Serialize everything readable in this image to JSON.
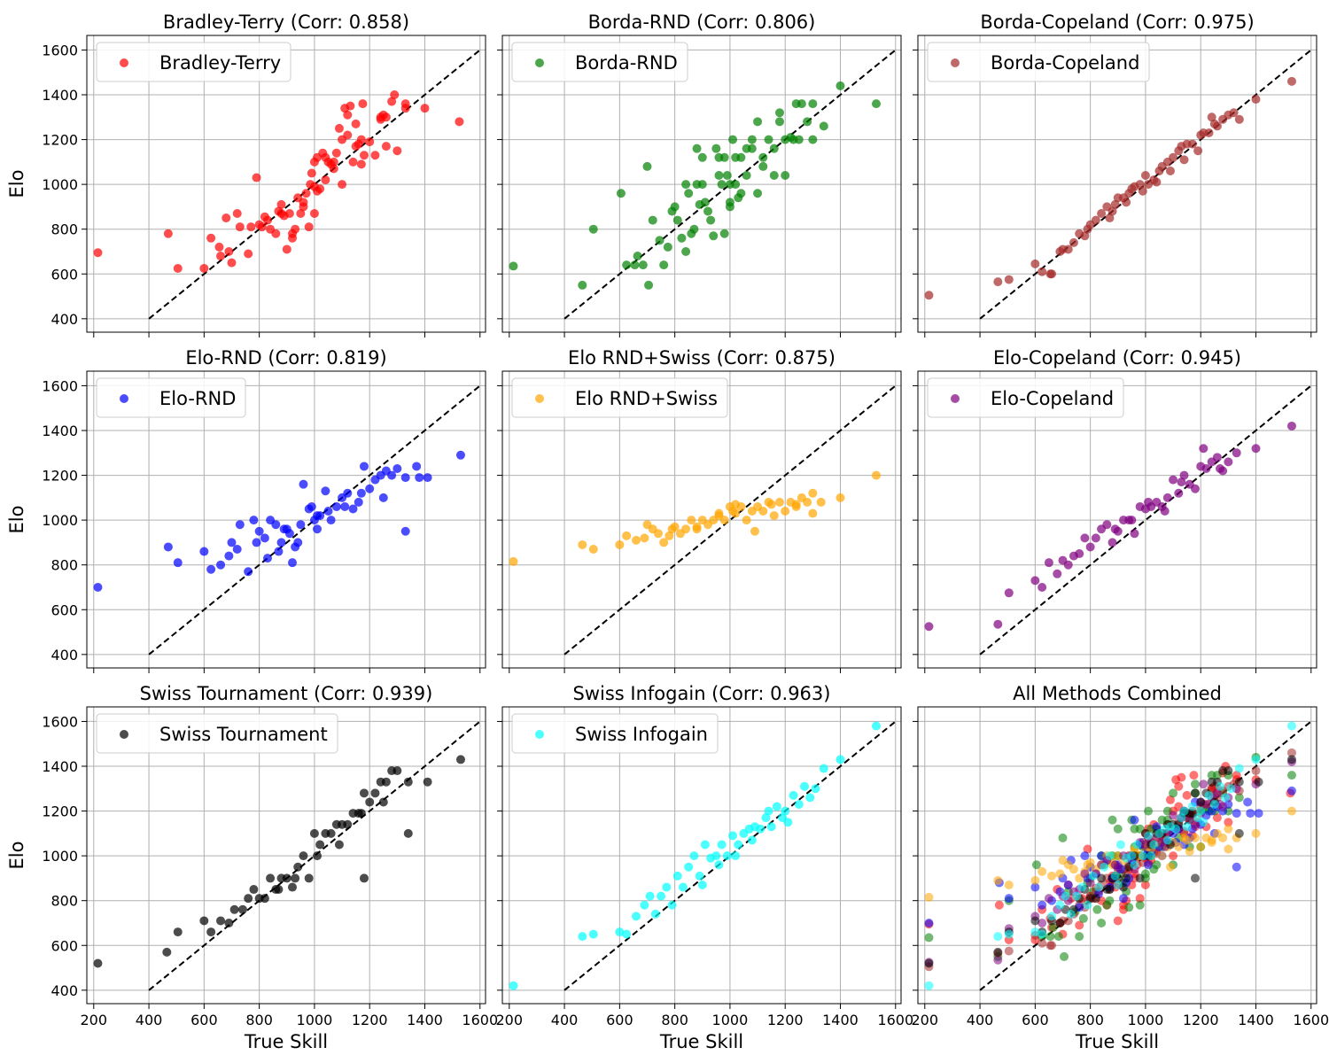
{
  "figure": {
    "xlabel": "True Skill",
    "ylabel": "Elo",
    "xlim": [
      175,
      1620
    ],
    "ylim": [
      340,
      1665
    ],
    "xticks": [
      200,
      400,
      600,
      800,
      1000,
      1200,
      1400,
      1600
    ],
    "yticks": [
      400,
      600,
      800,
      1000,
      1200,
      1400,
      1600
    ],
    "grid": true,
    "identity_line": {
      "from": [
        400,
        400
      ],
      "to": [
        1600,
        1600
      ],
      "color": "#000000",
      "style": "dashed"
    }
  },
  "chart_data": [
    {
      "type": "scatter",
      "title": "Bradley-Terry (Corr: 0.858)",
      "legend": "Bradley-Terry",
      "color": "#ff0000",
      "xlabel": "",
      "ylabel": "Elo",
      "legend_placement": "top-left",
      "x": [
        215,
        470,
        505,
        600,
        625,
        655,
        660,
        680,
        690,
        700,
        720,
        730,
        760,
        770,
        790,
        800,
        810,
        820,
        830,
        840,
        860,
        870,
        880,
        890,
        900,
        910,
        920,
        930,
        940,
        950,
        960,
        970,
        980,
        985,
        990,
        1000,
        1000,
        1010,
        1020,
        1030,
        1040,
        1050,
        1060,
        1070,
        1080,
        1090,
        1100,
        1110,
        1120,
        1130,
        1140,
        1150,
        1160,
        1170,
        1180,
        1200,
        1220,
        1240,
        1250,
        1260,
        1280,
        1290,
        1300,
        1330,
        1400,
        1525,
        960,
        1040,
        1070,
        1150,
        1175,
        1240,
        1100,
        880,
        920,
        1000,
        1010,
        1120,
        1170,
        1260,
        1330
      ],
      "y": [
        695,
        780,
        625,
        625,
        760,
        720,
        680,
        850,
        700,
        650,
        870,
        810,
        690,
        810,
        1030,
        820,
        810,
        855,
        840,
        800,
        780,
        880,
        910,
        860,
        710,
        870,
        760,
        800,
        940,
        870,
        900,
        960,
        810,
        1000,
        1050,
        990,
        1100,
        1120,
        980,
        1140,
        1120,
        1100,
        1090,
        1070,
        1140,
        1250,
        1200,
        1340,
        1310,
        1350,
        1100,
        1170,
        1180,
        1090,
        1130,
        1190,
        1130,
        1300,
        1310,
        1300,
        1370,
        1400,
        1150,
        1340,
        1340,
        1280,
        920,
        1020,
        1100,
        1270,
        1360,
        1290,
        1000,
        870,
        780,
        870,
        970,
        1220,
        1200,
        1170,
        1360
      ]
    },
    {
      "type": "scatter",
      "title": "Borda-RND (Corr: 0.806)",
      "legend": "Borda-RND",
      "color": "#008000",
      "xlabel": "",
      "ylabel": "",
      "legend_placement": "top-left",
      "x": [
        215,
        465,
        505,
        605,
        625,
        655,
        665,
        685,
        700,
        705,
        720,
        745,
        760,
        775,
        790,
        800,
        810,
        825,
        840,
        850,
        860,
        870,
        880,
        890,
        900,
        910,
        930,
        940,
        950,
        960,
        970,
        980,
        990,
        1000,
        1010,
        1020,
        1030,
        1040,
        1060,
        1080,
        1100,
        1120,
        1140,
        1160,
        1180,
        1200,
        1220,
        1240,
        1260,
        1300,
        1340,
        1400,
        1530,
        960,
        1000,
        1040,
        1120,
        1180,
        1230,
        880,
        900,
        980,
        1020,
        1060,
        1080,
        1160,
        1250,
        1280,
        840,
        920,
        1000,
        1100,
        1200,
        1300
      ],
      "y": [
        635,
        550,
        800,
        960,
        640,
        640,
        680,
        640,
        1080,
        550,
        840,
        750,
        640,
        720,
        880,
        900,
        840,
        760,
        700,
        960,
        780,
        800,
        1000,
        910,
        1120,
        920,
        840,
        770,
        1160,
        1120,
        1000,
        1120,
        1040,
        920,
        1200,
        1000,
        940,
        1120,
        1160,
        1200,
        1280,
        1120,
        1200,
        1160,
        1280,
        1200,
        1210,
        1360,
        1360,
        1200,
        1260,
        1440,
        1360,
        1040,
        900,
        960,
        1080,
        1320,
        1200,
        1160,
        1000,
        780,
        1120,
        1040,
        1160,
        1040,
        1200,
        1280,
        1000,
        880,
        1000,
        960,
        1040,
        1360
      ]
    },
    {
      "type": "scatter",
      "title": "Borda-Copeland (Corr: 0.975)",
      "legend": "Borda-Copeland",
      "color": "#a52a2a",
      "xlabel": "",
      "ylabel": "",
      "legend_placement": "top-left",
      "x": [
        215,
        465,
        505,
        600,
        625,
        655,
        660,
        690,
        700,
        720,
        740,
        760,
        780,
        790,
        800,
        820,
        840,
        860,
        880,
        890,
        900,
        920,
        940,
        950,
        960,
        980,
        1000,
        1010,
        1030,
        1050,
        1060,
        1080,
        1100,
        1120,
        1130,
        1150,
        1170,
        1190,
        1210,
        1230,
        1240,
        1260,
        1280,
        1300,
        1340,
        1400,
        1530,
        870,
        930,
        990,
        1040,
        1090,
        1140,
        1200,
        1250,
        1320
      ],
      "y": [
        505,
        565,
        575,
        645,
        610,
        600,
        600,
        700,
        710,
        710,
        740,
        780,
        770,
        800,
        820,
        840,
        870,
        900,
        880,
        910,
        940,
        940,
        960,
        980,
        990,
        1000,
        1040,
        1000,
        1020,
        1060,
        1080,
        1100,
        1120,
        1150,
        1170,
        1180,
        1180,
        1150,
        1230,
        1230,
        1300,
        1260,
        1290,
        1310,
        1290,
        1380,
        1460,
        850,
        920,
        970,
        1010,
        1060,
        1110,
        1220,
        1270,
        1320
      ]
    },
    {
      "type": "scatter",
      "title": "Elo-RND (Corr: 0.819)",
      "legend": "Elo-RND",
      "color": "#0000ff",
      "xlabel": "",
      "ylabel": "Elo",
      "legend_placement": "top-left",
      "x": [
        215,
        470,
        505,
        600,
        625,
        660,
        690,
        700,
        720,
        730,
        760,
        780,
        790,
        800,
        820,
        830,
        840,
        860,
        880,
        890,
        900,
        910,
        920,
        940,
        950,
        960,
        980,
        990,
        1000,
        1010,
        1020,
        1040,
        1060,
        1080,
        1100,
        1120,
        1140,
        1160,
        1180,
        1200,
        1220,
        1240,
        1260,
        1280,
        1300,
        1330,
        1370,
        1410,
        1530,
        870,
        930,
        1010,
        1050,
        1110,
        1170,
        1250,
        1330,
        1380
      ],
      "y": [
        700,
        880,
        810,
        860,
        780,
        800,
        840,
        900,
        870,
        980,
        770,
        1000,
        900,
        950,
        920,
        830,
        1000,
        980,
        900,
        960,
        960,
        940,
        810,
        900,
        980,
        1160,
        1050,
        1060,
        1000,
        1020,
        1020,
        1130,
        1000,
        1060,
        1100,
        1120,
        1050,
        1080,
        1240,
        1140,
        1180,
        1200,
        1220,
        1200,
        1230,
        1190,
        1240,
        1190,
        1290,
        860,
        880,
        960,
        1040,
        1060,
        1120,
        1100,
        950,
        1190
      ]
    },
    {
      "type": "scatter",
      "title": "Elo RND+Swiss (Corr: 0.875)",
      "legend": "Elo RND+Swiss",
      "color": "#ffa500",
      "xlabel": "",
      "ylabel": "",
      "legend_placement": "top-left",
      "x": [
        215,
        465,
        505,
        600,
        625,
        660,
        690,
        700,
        720,
        740,
        760,
        780,
        790,
        800,
        820,
        840,
        860,
        880,
        900,
        920,
        940,
        960,
        980,
        1000,
        1010,
        1020,
        1040,
        1060,
        1080,
        1100,
        1120,
        1140,
        1160,
        1180,
        1200,
        1220,
        1240,
        1260,
        1280,
        1300,
        1330,
        1400,
        1530,
        880,
        960,
        1020,
        1090,
        1150,
        1240,
        1300
      ],
      "y": [
        815,
        890,
        870,
        890,
        930,
        910,
        920,
        980,
        960,
        940,
        900,
        930,
        960,
        970,
        940,
        960,
        1000,
        970,
        1000,
        980,
        1000,
        1020,
        1000,
        1060,
        1040,
        1030,
        1060,
        1000,
        1040,
        1060,
        1040,
        1080,
        1020,
        1080,
        1040,
        1080,
        1060,
        1100,
        1080,
        1120,
        1080,
        1100,
        1200,
        960,
        1030,
        1070,
        950,
        1070,
        1070,
        1030
      ]
    },
    {
      "type": "scatter",
      "title": "Elo-Copeland (Corr: 0.945)",
      "legend": "Elo-Copeland",
      "color": "#800080",
      "xlabel": "",
      "ylabel": "",
      "legend_placement": "top-left",
      "x": [
        215,
        465,
        505,
        600,
        625,
        650,
        680,
        700,
        720,
        740,
        760,
        780,
        800,
        820,
        840,
        860,
        880,
        900,
        920,
        940,
        960,
        980,
        1000,
        1020,
        1040,
        1060,
        1080,
        1100,
        1120,
        1140,
        1160,
        1180,
        1200,
        1220,
        1240,
        1260,
        1280,
        1300,
        1330,
        1400,
        1530,
        890,
        950,
        1010,
        1070,
        1130,
        1210,
        1270
      ],
      "y": [
        525,
        535,
        675,
        730,
        700,
        810,
        760,
        820,
        800,
        840,
        850,
        920,
        880,
        920,
        960,
        980,
        900,
        950,
        1000,
        1000,
        940,
        1060,
        1050,
        1060,
        1080,
        1060,
        1100,
        1180,
        1120,
        1200,
        1160,
        1140,
        1240,
        1230,
        1260,
        1280,
        1220,
        1260,
        1300,
        1320,
        1420,
        960,
        1000,
        1080,
        1040,
        1170,
        1320,
        1230
      ]
    },
    {
      "type": "scatter",
      "title": "Swiss Tournament (Corr: 0.939)",
      "legend": "Swiss Tournament",
      "color": "#000000",
      "xlabel": "True Skill",
      "ylabel": "Elo",
      "legend_placement": "top-left",
      "x": [
        215,
        465,
        505,
        600,
        625,
        660,
        690,
        710,
        740,
        760,
        780,
        800,
        820,
        840,
        860,
        880,
        900,
        920,
        940,
        960,
        980,
        1000,
        1020,
        1040,
        1060,
        1080,
        1100,
        1120,
        1140,
        1160,
        1180,
        1200,
        1220,
        1240,
        1260,
        1280,
        1300,
        1340,
        1410,
        1530,
        1180,
        1340,
        870,
        930,
        1010,
        1090,
        1170,
        1250
      ],
      "y": [
        520,
        570,
        660,
        710,
        660,
        710,
        700,
        760,
        760,
        810,
        850,
        810,
        810,
        900,
        850,
        900,
        900,
        860,
        950,
        1000,
        900,
        1100,
        1050,
        1100,
        1100,
        1140,
        1140,
        1140,
        1190,
        1190,
        1280,
        1240,
        1280,
        1330,
        1330,
        1380,
        1380,
        1330,
        1330,
        1430,
        900,
        1100,
        850,
        900,
        1000,
        1050,
        1190,
        1240
      ]
    },
    {
      "type": "scatter",
      "title": "Swiss Infogain (Corr: 0.963)",
      "legend": "Swiss Infogain",
      "color": "#00ffff",
      "xlabel": "True Skill",
      "ylabel": "",
      "legend_placement": "top-left",
      "x": [
        215,
        465,
        505,
        600,
        625,
        660,
        690,
        710,
        730,
        750,
        770,
        790,
        810,
        830,
        850,
        870,
        890,
        910,
        930,
        950,
        970,
        990,
        1010,
        1030,
        1050,
        1070,
        1090,
        1110,
        1130,
        1150,
        1170,
        1190,
        1210,
        1230,
        1250,
        1270,
        1290,
        1310,
        1340,
        1400,
        1530,
        900,
        960,
        1020,
        1080,
        1140,
        1200
      ],
      "y": [
        420,
        640,
        650,
        660,
        650,
        730,
        780,
        820,
        740,
        820,
        860,
        780,
        910,
        860,
        950,
        1000,
        910,
        1050,
        990,
        1000,
        1050,
        1000,
        1090,
        1050,
        1100,
        1120,
        1130,
        1120,
        1170,
        1130,
        1220,
        1170,
        1150,
        1270,
        1230,
        1310,
        1260,
        1300,
        1390,
        1430,
        1580,
        870,
        960,
        1000,
        1070,
        1200,
        1200
      ]
    },
    {
      "type": "scatter",
      "title": "All Methods Combined",
      "legend": "",
      "color": "mixed",
      "xlabel": "True Skill",
      "ylabel": "",
      "legend_placement": "none",
      "note": "overlay of all eight series above with alpha 0.55"
    }
  ]
}
